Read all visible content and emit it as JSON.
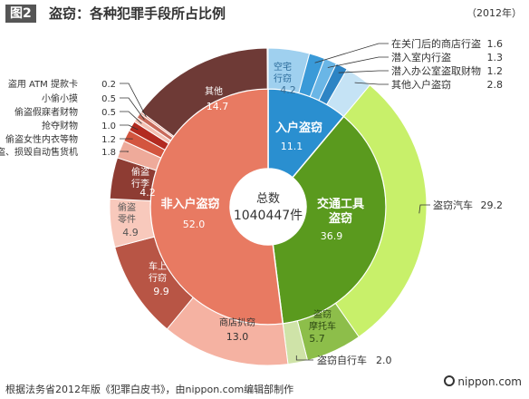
{
  "header": {
    "badge": "图2",
    "title": "盗窃：各种犯罪手段所占比例",
    "year": "（2012年）"
  },
  "footer": {
    "source": "根据法务省2012年版《犯罪白皮书》，由nippon.com编辑部制作",
    "credit": "nippon.com"
  },
  "center": {
    "label": "总数",
    "value": "1040447件"
  },
  "chart_data": {
    "type": "pie",
    "total": 1040447,
    "unit": "%",
    "inner": [
      {
        "name": "入户盗窃",
        "value": 11.1,
        "color": "#2a8fd0"
      },
      {
        "name": "交通工具盗窃",
        "value": 36.9,
        "color": "#5a9a1e"
      },
      {
        "name": "非入户盗窃",
        "value": 52.0,
        "color": "#e87a62"
      }
    ],
    "outer": [
      {
        "name": "空宅行窃",
        "value": 4.2,
        "color": "#9fd0ef",
        "parent": "入户盗窃"
      },
      {
        "name": "在关门后的商店行盗",
        "value": 1.6,
        "color": "#3a9ad8",
        "parent": "入户盗窃"
      },
      {
        "name": "潜入室内行盗",
        "value": 1.3,
        "color": "#6ab6e6",
        "parent": "入户盗窃"
      },
      {
        "name": "潜入办公室盗取财物",
        "value": 1.2,
        "color": "#2d84c4",
        "parent": "入户盗窃"
      },
      {
        "name": "其他入户盗窃",
        "value": 2.8,
        "color": "#c5e3f5",
        "parent": "入户盗窃"
      },
      {
        "name": "盗窃汽车",
        "value": 29.2,
        "color": "#c8f06a",
        "parent": "交通工具盗窃"
      },
      {
        "name": "盗窃摩托车",
        "value": 5.7,
        "color": "#8dbe4a",
        "parent": "交通工具盗窃"
      },
      {
        "name": "盗窃自行车",
        "value": 2.0,
        "color": "#cfe3a8",
        "parent": "交通工具盗窃"
      },
      {
        "name": "商店扒窃",
        "value": 13.0,
        "color": "#f5b2a2",
        "parent": "非入户盗窃"
      },
      {
        "name": "车上行窃",
        "value": 9.9,
        "color": "#b85545",
        "parent": "非入户盗窃"
      },
      {
        "name": "偷盗零件",
        "value": 4.9,
        "color": "#f8c9bc",
        "parent": "非入户盗窃"
      },
      {
        "name": "偷盗行李",
        "value": 4.2,
        "color": "#8e3c33",
        "parent": "非入户盗窃"
      },
      {
        "name": "撬盗、损毁自动售货机",
        "value": 1.8,
        "color": "#eeaa9a",
        "parent": "非入户盗窃"
      },
      {
        "name": "偷盗女性内衣等物",
        "value": 1.2,
        "color": "#d3553f",
        "parent": "非入户盗窃"
      },
      {
        "name": "抢夺财物",
        "value": 1.0,
        "color": "#b22a20",
        "parent": "非入户盗窃"
      },
      {
        "name": "偷盗假寐者财物",
        "value": 0.5,
        "color": "#f3c0b2",
        "parent": "非入户盗窃"
      },
      {
        "name": "小偷小摸",
        "value": 0.5,
        "color": "#c86a5a",
        "parent": "非入户盗窃"
      },
      {
        "name": "盗用 ATM 提款卡",
        "value": 0.2,
        "color": "#e89684",
        "parent": "非入户盗窃"
      },
      {
        "name": "其他",
        "value": 14.7,
        "color": "#6e3a36",
        "parent": "非入户盗窃"
      }
    ]
  }
}
